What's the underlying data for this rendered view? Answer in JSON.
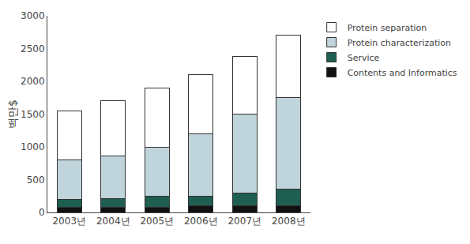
{
  "chart_data": {
    "type": "bar",
    "stacked": true,
    "categories": [
      "2003년",
      "2004년",
      "2005년",
      "2006년",
      "2007년",
      "2008년"
    ],
    "series": [
      {
        "name": "Contents and Informatics",
        "color": "#111111",
        "values": [
          75,
          80,
          75,
          100,
          100,
          100
        ]
      },
      {
        "name": "Service",
        "color": "#1e5f52",
        "values": [
          125,
          130,
          175,
          150,
          200,
          250
        ]
      },
      {
        "name": "Protein characterization",
        "color": "#c0d4db",
        "values": [
          600,
          650,
          750,
          950,
          1200,
          1400
        ]
      },
      {
        "name": "Protein separation",
        "color": "#ffffff",
        "values": [
          750,
          840,
          900,
          900,
          875,
          950
        ]
      }
    ],
    "ylabel": "백만$",
    "ylim": [
      0,
      3000
    ],
    "yticks": [
      0,
      500,
      1000,
      1500,
      2000,
      2500,
      3000
    ],
    "grid": false,
    "legend": "right"
  }
}
